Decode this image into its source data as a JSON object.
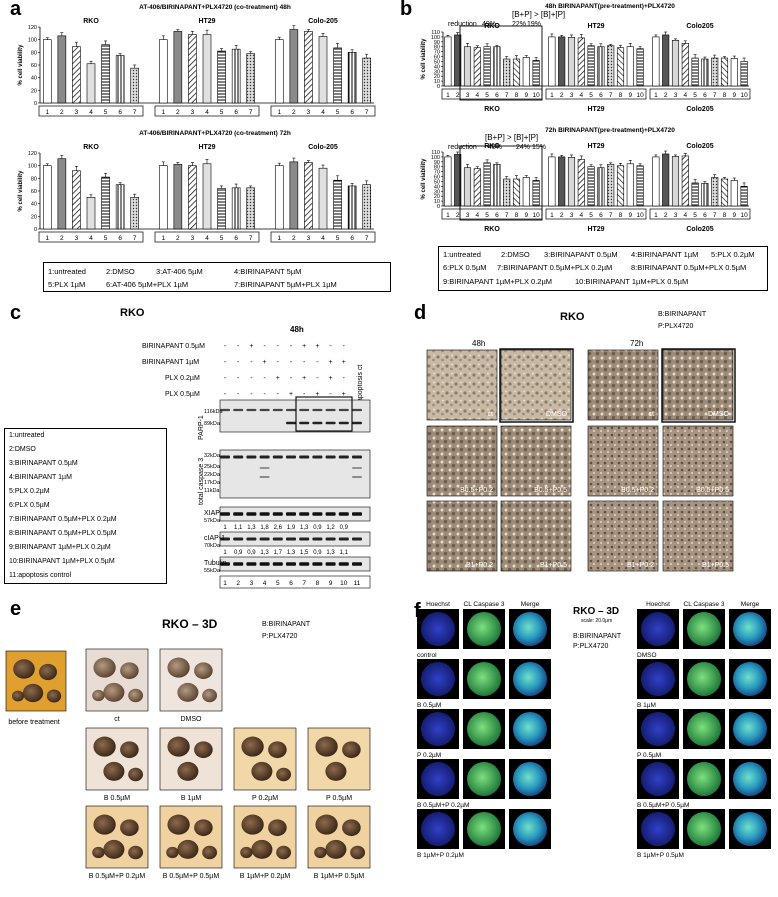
{
  "panels": {
    "a": {
      "label": "a",
      "title_48": "AT-406/BIRINAPANT+PLX4720 (co-treatment) 48h",
      "title_72": "AT-406/BIRINAPANT+PLX4720 (co-treatment) 72h",
      "ylabel": "% cell viability",
      "yticks": [
        "0",
        "20",
        "40",
        "60",
        "80",
        "100",
        "120"
      ],
      "cells": [
        "RKO",
        "HT29",
        "Colo-205"
      ],
      "lanes": [
        "1",
        "2",
        "3",
        "4",
        "5",
        "6",
        "7"
      ],
      "legend": [
        "1:untreated",
        "2:DMSO",
        "3:AT-406 5µM",
        "4:BIRINAPANT 5µM",
        "5:PLX 1µM",
        "6:AT-406 5µM+PLX 1µM",
        "7:BIRINAPANT 5µM+PLX 1µM"
      ]
    },
    "b": {
      "label": "b",
      "title_48": "48h BIRINAPANT(pre-treatment)+PLX4720",
      "title_72": "72h BIRINAPANT(pre-treatment)+PLX4720",
      "ylabel": "% cell viability",
      "yticks": [
        "0",
        "10",
        "20",
        "30",
        "40",
        "50",
        "60",
        "70",
        "80",
        "90",
        "100",
        "110"
      ],
      "reduction": "reduction",
      "formula": "[B+P] > [B]+[P]",
      "pct_48": [
        "49%",
        "22%",
        "19%"
      ],
      "pct_72": [
        "48%",
        "24%",
        "15%"
      ],
      "cells": [
        "RKO",
        "HT29",
        "Colo205"
      ],
      "lanes": [
        "1",
        "2",
        "3",
        "4",
        "5",
        "6",
        "7",
        "8",
        "9",
        "10"
      ],
      "legend": [
        "1:untreated",
        "2:DMSO",
        "3:BIRINAPANT 0.5µM",
        "4:BIRINAPANT 1µM",
        "5:PLX 0.2µM",
        "6:PLX 0.5µM",
        "7:BIRINAPANT 0.5µM+PLX 0.2µM",
        "8:BIRINAPANT 0.5µM+PLX 0.5µM",
        "9:BIRINAPANT 1µM+PLX 0.2µM",
        "10:BIRINAPANT 1µM+PLX 0.5µM"
      ]
    },
    "c": {
      "label": "c",
      "title": "RKO",
      "time": "48h",
      "treatments": [
        "BIRINAPANT 0.5µM",
        "BIRINAPANT 1µM",
        "PLX 0.2µM",
        "PLX 0.5µM"
      ],
      "apoptosis_ct": "apoptosis ct",
      "legend": [
        "1:untreated",
        "2:DMSO",
        "3:BIRINAPANT 0.5µM",
        "4:BIRINAPANT 1µM",
        "5:PLX 0.2µM",
        "6:PLX 0.5µM",
        "7:BIRINAPANT 0.5µM+PLX 0.2µM",
        "8:BIRINAPANT 0.5µM+PLX 0.5µM",
        "9:BIRINAPANT 1µM+PLX 0.2µM",
        "10:BIRINAPANT 1µM+PLX 0.5µM",
        "11:apoptosis control"
      ],
      "parp": "PARP-1",
      "parp_kda": [
        "116kDa",
        "89kDa"
      ],
      "caspase": "total caspase 3",
      "caspase_kda": [
        "32kDa",
        "25kDa",
        "22kDa",
        "17kDa",
        "11kDa"
      ],
      "xiap": "XIAP",
      "xiap_kda": "57kDa",
      "xiap_values": [
        "1",
        "1,1",
        "1,3",
        "1,8",
        "2,6",
        "1,9",
        "1,3",
        "0,9",
        "1,2",
        "0,9"
      ],
      "ciap": "cIAP-1",
      "ciap_kda": "70kDa",
      "ciap_values": [
        "1",
        "0,9",
        "0,9",
        "1,3",
        "1,7",
        "1,3",
        "1,5",
        "0,9",
        "1,3",
        "1,1"
      ],
      "tubulin": "Tubulin",
      "tubulin_kda": "55kDa",
      "lanes": [
        "1",
        "2",
        "3",
        "4",
        "5",
        "6",
        "7",
        "8",
        "9",
        "10",
        "11"
      ]
    },
    "d": {
      "label": "d",
      "title": "RKO",
      "key": [
        "B:BIRINAPANT",
        "P:PLX4720"
      ],
      "times": [
        "48h",
        "72h"
      ],
      "tiles": [
        "ct",
        "DMSO",
        "ct",
        "DMSO",
        "B0.5+P0.2",
        "B0.5+P0.5",
        "B0.5+P0.2",
        "B0.5+P0.5",
        "B1+P0.2",
        "B1+P0.5",
        "B1+P0.2",
        "B1+P0.5"
      ]
    },
    "e": {
      "label": "e",
      "title": "RKO – 3D",
      "key": [
        "B:BIRINAPANT",
        "P:PLX4720"
      ],
      "before": "before treatment",
      "row1": [
        "ct",
        "DMSO"
      ],
      "row2": [
        "B 0.5µM",
        "B 1µM",
        "P 0.2µM",
        "P 0.5µM"
      ],
      "row3": [
        "B 0.5µM+P 0.2µM",
        "B 0.5µM+P 0.5µM",
        "B 1µM+P 0.2µM",
        "B 1µM+P 0.5µM"
      ]
    },
    "f": {
      "label": "f",
      "title": "RKO – 3D",
      "scale": "scale: 20.0µm",
      "key": [
        "B:BIRINAPANT",
        "P:PLX4720"
      ],
      "channels": [
        "Hoechst",
        "CL Caspase 3",
        "Merge"
      ],
      "left": [
        "control",
        "B 0.5µM",
        "P 0.2µM",
        "B 0.5µM+P 0.2µM",
        "B 1µM+P 0.2µM"
      ],
      "right": [
        "DMSO",
        "B 1µM",
        "P 0.5µM",
        "B 0.5µM+P 0.5µM",
        "B 1µM+P 0.5µM"
      ]
    }
  },
  "chart_data": [
    {
      "type": "bar",
      "title": "AT-406/BIRINAPANT+PLX4720 (co-treatment) 48h",
      "ylabel": "% cell viability",
      "ylim": [
        0,
        120
      ],
      "categories": [
        "1",
        "2",
        "3",
        "4",
        "5",
        "6",
        "7"
      ],
      "series": [
        {
          "name": "RKO",
          "values": [
            100,
            106,
            89,
            62,
            92,
            75,
            55
          ]
        },
        {
          "name": "HT29",
          "values": [
            100,
            113,
            108,
            108,
            82,
            85,
            78
          ]
        },
        {
          "name": "Colo-205",
          "values": [
            100,
            116,
            113,
            105,
            87,
            80,
            71
          ]
        }
      ]
    },
    {
      "type": "bar",
      "title": "AT-406/BIRINAPANT+PLX4720 (co-treatment) 72h",
      "ylabel": "% cell viability",
      "ylim": [
        0,
        120
      ],
      "categories": [
        "1",
        "2",
        "3",
        "4",
        "5",
        "6",
        "7"
      ],
      "series": [
        {
          "name": "RKO",
          "values": [
            100,
            111,
            92,
            50,
            82,
            70,
            50
          ]
        },
        {
          "name": "HT29",
          "values": [
            100,
            102,
            100,
            103,
            64,
            65,
            65
          ]
        },
        {
          "name": "Colo-205",
          "values": [
            100,
            106,
            105,
            96,
            77,
            68,
            70
          ]
        }
      ]
    },
    {
      "type": "bar",
      "title": "48h BIRINAPANT(pre-treatment)+PLX4720",
      "ylabel": "% cell viability",
      "ylim": [
        0,
        110
      ],
      "categories": [
        "1",
        "2",
        "3",
        "4",
        "5",
        "6",
        "7",
        "8",
        "9",
        "10"
      ],
      "series": [
        {
          "name": "RKO",
          "values": [
            100,
            104,
            80,
            78,
            80,
            80,
            55,
            55,
            58,
            52
          ]
        },
        {
          "name": "HT29",
          "values": [
            100,
            100,
            99,
            98,
            82,
            80,
            82,
            78,
            80,
            76
          ]
        },
        {
          "name": "Colo205",
          "values": [
            100,
            104,
            93,
            87,
            57,
            55,
            57,
            57,
            56,
            50
          ]
        }
      ]
    },
    {
      "type": "bar",
      "title": "72h BIRINAPANT(pre-treatment)+PLX4720",
      "ylabel": "% cell viability",
      "ylim": [
        0,
        110
      ],
      "categories": [
        "1",
        "2",
        "3",
        "4",
        "5",
        "6",
        "7",
        "8",
        "9",
        "10"
      ],
      "series": [
        {
          "name": "RKO",
          "values": [
            100,
            105,
            78,
            76,
            88,
            85,
            55,
            55,
            58,
            52
          ]
        },
        {
          "name": "HT29",
          "values": [
            100,
            100,
            99,
            95,
            80,
            78,
            85,
            82,
            86,
            82
          ]
        },
        {
          "name": "Colo205",
          "values": [
            100,
            106,
            101,
            102,
            47,
            46,
            58,
            55,
            52,
            40
          ]
        }
      ]
    }
  ]
}
